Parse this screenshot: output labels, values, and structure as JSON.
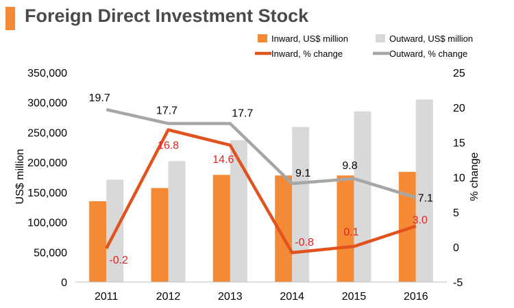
{
  "chart_data": {
    "type": "bar",
    "title": "Foreign Direct Investment Stock",
    "categories": [
      "2011",
      "2012",
      "2013",
      "2014",
      "2015",
      "2016"
    ],
    "ylabel": "US$ million",
    "y2label": "% change",
    "ylim": [
      0,
      350000
    ],
    "y2lim": [
      -5,
      25
    ],
    "yticks": [
      "0",
      "50,000",
      "100,000",
      "150,000",
      "200,000",
      "250,000",
      "300,000",
      "350,000"
    ],
    "y2ticks": [
      "-5",
      "0",
      "5",
      "10",
      "15",
      "20",
      "25"
    ],
    "series": [
      {
        "name": "Inward, US$ million",
        "type": "bar",
        "axis": "left",
        "color": "#f48a35",
        "values": [
          135000,
          157000,
          179000,
          178000,
          178000,
          184000
        ]
      },
      {
        "name": "Outward, US$ million",
        "type": "bar",
        "axis": "left",
        "color": "#d9d9d9",
        "values": [
          171000,
          202000,
          237000,
          259000,
          285000,
          305000
        ]
      },
      {
        "name": "Inward, % change",
        "type": "line",
        "axis": "right",
        "color": "#e0531e",
        "values": [
          -0.2,
          16.8,
          14.6,
          -0.8,
          0.1,
          3.0
        ],
        "labels": [
          "-0.2",
          "16.8",
          "14.6",
          "-0.8",
          "0.1",
          "3.0"
        ]
      },
      {
        "name": "Outward, % change",
        "type": "line",
        "axis": "right",
        "color": "#a6a6a6",
        "values": [
          19.7,
          17.7,
          17.7,
          9.1,
          9.8,
          7.1
        ],
        "labels": [
          "19.7",
          "17.7",
          "17.7",
          "9.1",
          "9.8",
          "7.1"
        ]
      }
    ],
    "label_color_inward": "#e0231e",
    "label_color_outward": "#000000"
  }
}
